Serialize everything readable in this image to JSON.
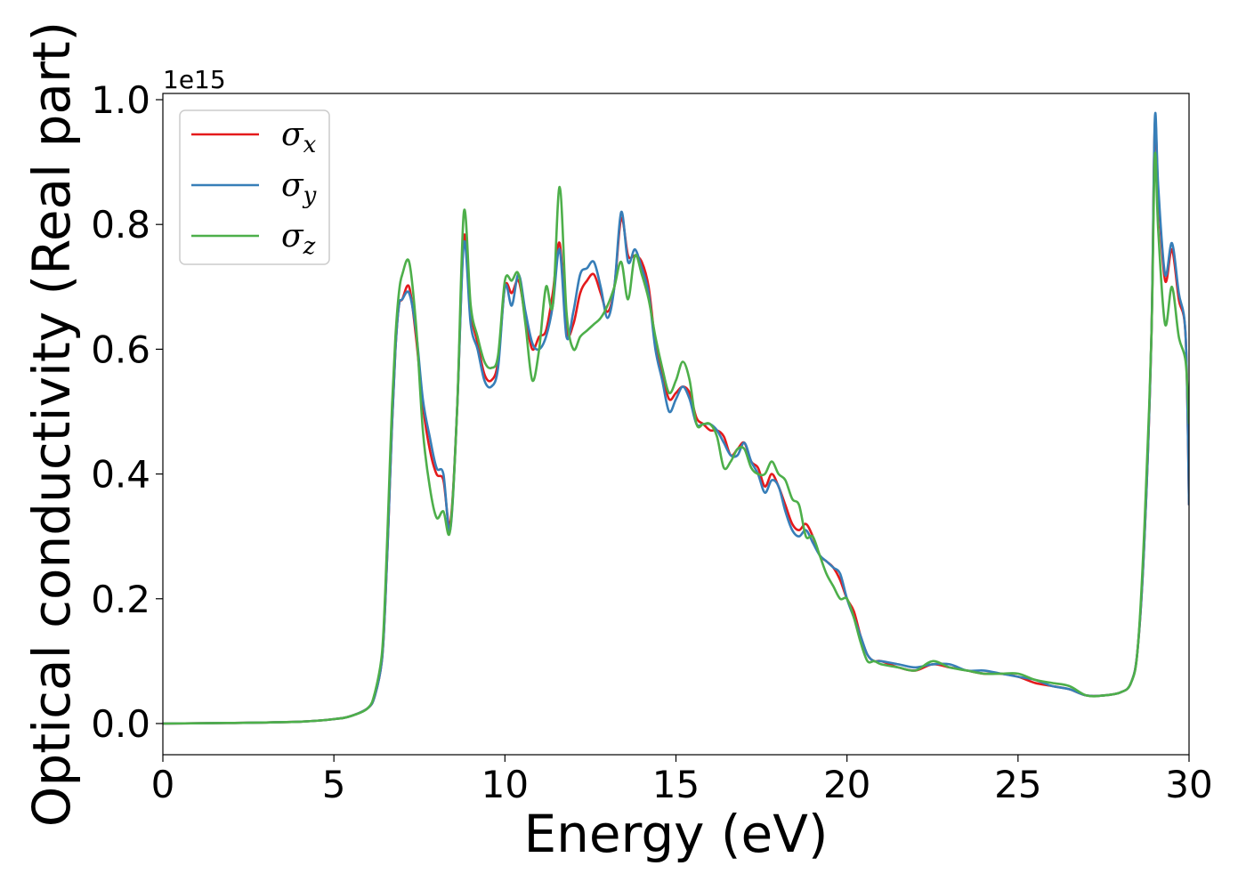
{
  "chart_data": {
    "type": "line",
    "title": "",
    "xlabel": "Energy (eV)",
    "ylabel": "Optical conductivity (Real part)",
    "y_offset_label": "1e15",
    "xlim": [
      0,
      30
    ],
    "ylim": [
      -0.05,
      1.01
    ],
    "xticks": [
      0,
      5,
      10,
      15,
      20,
      25,
      30
    ],
    "yticks": [
      0.0,
      0.2,
      0.4,
      0.6,
      0.8,
      1.0
    ],
    "xtick_labels": [
      "0",
      "5",
      "10",
      "15",
      "20",
      "25",
      "30"
    ],
    "ytick_labels": [
      "0.0",
      "0.2",
      "0.4",
      "0.6",
      "0.8",
      "1.0"
    ],
    "grid": false,
    "legend_position": "top-left",
    "series": [
      {
        "name": "σx",
        "symbol": "σ",
        "subscript": "x",
        "color": "#e41a1c",
        "x": [
          0,
          2,
          4,
          5,
          5.5,
          6,
          6.2,
          6.4,
          6.5,
          6.6,
          6.7,
          6.8,
          6.9,
          7.0,
          7.2,
          7.4,
          7.6,
          7.8,
          8.0,
          8.2,
          8.4,
          8.6,
          8.8,
          9.0,
          9.2,
          9.4,
          9.6,
          9.8,
          10.0,
          10.2,
          10.4,
          10.6,
          10.8,
          11.0,
          11.2,
          11.4,
          11.6,
          11.8,
          12.0,
          12.2,
          12.4,
          12.6,
          12.8,
          13.0,
          13.2,
          13.4,
          13.6,
          13.8,
          14.0,
          14.2,
          14.4,
          14.6,
          14.8,
          15.0,
          15.2,
          15.4,
          15.6,
          15.8,
          16.0,
          16.2,
          16.4,
          16.6,
          16.8,
          17.0,
          17.2,
          17.4,
          17.6,
          17.8,
          18.0,
          18.2,
          18.4,
          18.6,
          18.8,
          19.0,
          19.2,
          19.4,
          19.6,
          19.8,
          20.0,
          20.2,
          20.4,
          20.6,
          20.8,
          21.0,
          21.5,
          22.0,
          22.5,
          23.0,
          23.5,
          24.0,
          24.5,
          25.0,
          25.5,
          26.0,
          26.5,
          27.0,
          27.5,
          28.0,
          28.3,
          28.5,
          28.7,
          28.9,
          29.0,
          29.1,
          29.3,
          29.5,
          29.7,
          29.9,
          30.0
        ],
        "y": [
          0.0,
          0.001,
          0.003,
          0.007,
          0.012,
          0.025,
          0.045,
          0.1,
          0.19,
          0.33,
          0.48,
          0.6,
          0.67,
          0.68,
          0.7,
          0.62,
          0.51,
          0.44,
          0.4,
          0.39,
          0.32,
          0.5,
          0.78,
          0.66,
          0.61,
          0.56,
          0.55,
          0.58,
          0.7,
          0.69,
          0.71,
          0.65,
          0.6,
          0.62,
          0.63,
          0.69,
          0.77,
          0.63,
          0.64,
          0.69,
          0.71,
          0.72,
          0.69,
          0.66,
          0.7,
          0.81,
          0.75,
          0.75,
          0.74,
          0.7,
          0.61,
          0.56,
          0.52,
          0.53,
          0.54,
          0.53,
          0.49,
          0.48,
          0.47,
          0.47,
          0.46,
          0.43,
          0.44,
          0.45,
          0.42,
          0.41,
          0.38,
          0.4,
          0.38,
          0.35,
          0.32,
          0.31,
          0.32,
          0.3,
          0.27,
          0.26,
          0.25,
          0.23,
          0.2,
          0.18,
          0.14,
          0.11,
          0.1,
          0.1,
          0.09,
          0.085,
          0.095,
          0.09,
          0.085,
          0.08,
          0.08,
          0.075,
          0.065,
          0.06,
          0.055,
          0.045,
          0.045,
          0.05,
          0.065,
          0.12,
          0.3,
          0.62,
          0.96,
          0.85,
          0.71,
          0.76,
          0.68,
          0.62,
          0.35
        ]
      },
      {
        "name": "σy",
        "symbol": "σ",
        "subscript": "y",
        "color": "#377eb8",
        "x": [
          0,
          2,
          4,
          5,
          5.5,
          6,
          6.2,
          6.4,
          6.5,
          6.6,
          6.7,
          6.8,
          6.9,
          7.0,
          7.2,
          7.4,
          7.6,
          7.8,
          8.0,
          8.2,
          8.4,
          8.6,
          8.8,
          9.0,
          9.2,
          9.4,
          9.6,
          9.8,
          10.0,
          10.2,
          10.4,
          10.6,
          10.8,
          11.0,
          11.2,
          11.4,
          11.6,
          11.8,
          12.0,
          12.2,
          12.4,
          12.6,
          12.8,
          13.0,
          13.2,
          13.4,
          13.6,
          13.8,
          14.0,
          14.2,
          14.4,
          14.6,
          14.8,
          15.0,
          15.2,
          15.4,
          15.6,
          15.8,
          16.0,
          16.2,
          16.4,
          16.6,
          16.8,
          17.0,
          17.2,
          17.4,
          17.6,
          17.8,
          18.0,
          18.2,
          18.4,
          18.6,
          18.8,
          19.0,
          19.2,
          19.4,
          19.6,
          19.8,
          20.0,
          20.2,
          20.4,
          20.6,
          20.8,
          21.0,
          21.5,
          22.0,
          22.5,
          23.0,
          23.5,
          24.0,
          24.5,
          25.0,
          25.5,
          26.0,
          26.5,
          27.0,
          27.5,
          28.0,
          28.3,
          28.5,
          28.7,
          28.9,
          29.0,
          29.1,
          29.3,
          29.5,
          29.7,
          29.9,
          30.0
        ],
        "y": [
          0.0,
          0.001,
          0.003,
          0.007,
          0.012,
          0.025,
          0.045,
          0.1,
          0.19,
          0.33,
          0.48,
          0.6,
          0.67,
          0.68,
          0.69,
          0.63,
          0.52,
          0.46,
          0.41,
          0.4,
          0.31,
          0.5,
          0.77,
          0.64,
          0.6,
          0.55,
          0.54,
          0.57,
          0.7,
          0.67,
          0.72,
          0.66,
          0.61,
          0.6,
          0.62,
          0.67,
          0.76,
          0.62,
          0.66,
          0.72,
          0.73,
          0.74,
          0.7,
          0.65,
          0.7,
          0.82,
          0.74,
          0.76,
          0.73,
          0.69,
          0.6,
          0.55,
          0.5,
          0.52,
          0.54,
          0.52,
          0.48,
          0.48,
          0.48,
          0.47,
          0.45,
          0.43,
          0.43,
          0.45,
          0.42,
          0.4,
          0.37,
          0.39,
          0.38,
          0.34,
          0.31,
          0.3,
          0.31,
          0.29,
          0.27,
          0.26,
          0.25,
          0.24,
          0.2,
          0.17,
          0.14,
          0.11,
          0.1,
          0.1,
          0.095,
          0.09,
          0.095,
          0.095,
          0.085,
          0.085,
          0.08,
          0.075,
          0.07,
          0.06,
          0.055,
          0.045,
          0.045,
          0.05,
          0.065,
          0.12,
          0.3,
          0.62,
          0.97,
          0.86,
          0.72,
          0.77,
          0.69,
          0.62,
          0.35
        ]
      },
      {
        "name": "σz",
        "symbol": "σ",
        "subscript": "z",
        "color": "#4daf4a",
        "x": [
          0,
          2,
          4,
          5,
          5.5,
          6,
          6.2,
          6.4,
          6.5,
          6.6,
          6.7,
          6.8,
          6.9,
          7.0,
          7.2,
          7.4,
          7.6,
          7.8,
          8.0,
          8.2,
          8.4,
          8.6,
          8.8,
          9.0,
          9.2,
          9.4,
          9.6,
          9.8,
          10.0,
          10.2,
          10.4,
          10.6,
          10.8,
          11.0,
          11.2,
          11.4,
          11.6,
          11.8,
          12.0,
          12.2,
          12.4,
          12.6,
          12.8,
          13.0,
          13.2,
          13.4,
          13.6,
          13.8,
          14.0,
          14.2,
          14.4,
          14.6,
          14.8,
          15.0,
          15.2,
          15.4,
          15.6,
          15.8,
          16.0,
          16.2,
          16.4,
          16.6,
          16.8,
          17.0,
          17.2,
          17.4,
          17.6,
          17.8,
          18.0,
          18.2,
          18.4,
          18.6,
          18.8,
          19.0,
          19.2,
          19.4,
          19.6,
          19.8,
          20.0,
          20.2,
          20.4,
          20.6,
          20.8,
          21.0,
          21.5,
          22.0,
          22.5,
          23.0,
          23.5,
          24.0,
          24.5,
          25.0,
          25.5,
          26.0,
          26.5,
          27.0,
          27.5,
          28.0,
          28.3,
          28.5,
          28.7,
          28.9,
          29.0,
          29.1,
          29.3,
          29.5,
          29.7,
          29.9,
          30.0
        ],
        "y": [
          0.0,
          0.001,
          0.003,
          0.007,
          0.012,
          0.025,
          0.05,
          0.11,
          0.21,
          0.36,
          0.51,
          0.62,
          0.69,
          0.72,
          0.74,
          0.64,
          0.47,
          0.38,
          0.33,
          0.34,
          0.31,
          0.5,
          0.82,
          0.67,
          0.62,
          0.58,
          0.57,
          0.59,
          0.71,
          0.71,
          0.72,
          0.64,
          0.55,
          0.6,
          0.7,
          0.67,
          0.86,
          0.66,
          0.6,
          0.62,
          0.63,
          0.64,
          0.65,
          0.67,
          0.7,
          0.74,
          0.68,
          0.75,
          0.72,
          0.68,
          0.62,
          0.57,
          0.53,
          0.55,
          0.58,
          0.55,
          0.48,
          0.48,
          0.48,
          0.46,
          0.41,
          0.42,
          0.44,
          0.44,
          0.41,
          0.4,
          0.4,
          0.42,
          0.4,
          0.39,
          0.36,
          0.35,
          0.3,
          0.3,
          0.27,
          0.24,
          0.22,
          0.2,
          0.2,
          0.17,
          0.13,
          0.1,
          0.1,
          0.095,
          0.09,
          0.085,
          0.1,
          0.09,
          0.085,
          0.08,
          0.08,
          0.08,
          0.07,
          0.065,
          0.06,
          0.045,
          0.045,
          0.05,
          0.065,
          0.12,
          0.32,
          0.62,
          0.91,
          0.79,
          0.64,
          0.7,
          0.62,
          0.58,
          0.48
        ]
      }
    ]
  }
}
